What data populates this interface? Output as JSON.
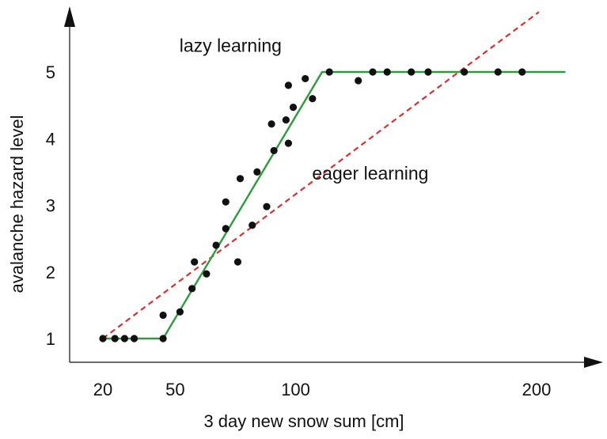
{
  "chart_data": {
    "type": "scatter",
    "xlabel": "3 day new snow sum [cm]",
    "ylabel": "avalanche  hazard  level",
    "xlim": [
      10,
      215
    ],
    "ylim": [
      0.6,
      6.0
    ],
    "xticks": [
      {
        "value": 20,
        "label": "20"
      },
      {
        "value": 50,
        "label": "50"
      },
      {
        "value": 100,
        "label": "100"
      },
      {
        "value": 200,
        "label": "200"
      }
    ],
    "yticks": [
      {
        "value": 1,
        "label": "1"
      },
      {
        "value": 2,
        "label": "2"
      },
      {
        "value": 3,
        "label": "3"
      },
      {
        "value": 4,
        "label": "4"
      },
      {
        "value": 5,
        "label": "5"
      }
    ],
    "grid": false,
    "points": [
      {
        "x": 20,
        "y": 1.0
      },
      {
        "x": 25,
        "y": 1.0
      },
      {
        "x": 29,
        "y": 1.0
      },
      {
        "x": 33,
        "y": 1.0
      },
      {
        "x": 45,
        "y": 1.0
      },
      {
        "x": 45,
        "y": 1.35
      },
      {
        "x": 52,
        "y": 1.4
      },
      {
        "x": 57,
        "y": 1.75
      },
      {
        "x": 58,
        "y": 2.15
      },
      {
        "x": 63,
        "y": 1.97
      },
      {
        "x": 67,
        "y": 2.4
      },
      {
        "x": 71,
        "y": 2.65
      },
      {
        "x": 71,
        "y": 3.05
      },
      {
        "x": 76,
        "y": 2.15
      },
      {
        "x": 77,
        "y": 3.4
      },
      {
        "x": 82,
        "y": 2.7
      },
      {
        "x": 84,
        "y": 3.5
      },
      {
        "x": 88,
        "y": 2.98
      },
      {
        "x": 90,
        "y": 4.22
      },
      {
        "x": 91,
        "y": 3.82
      },
      {
        "x": 96,
        "y": 4.28
      },
      {
        "x": 97,
        "y": 3.93
      },
      {
        "x": 97,
        "y": 4.8
      },
      {
        "x": 99,
        "y": 4.47
      },
      {
        "x": 104,
        "y": 4.9
      },
      {
        "x": 107,
        "y": 4.6
      },
      {
        "x": 114,
        "y": 5.0
      },
      {
        "x": 126,
        "y": 4.87
      },
      {
        "x": 132,
        "y": 5.0
      },
      {
        "x": 138,
        "y": 5.0
      },
      {
        "x": 148,
        "y": 5.0
      },
      {
        "x": 155,
        "y": 5.0
      },
      {
        "x": 170,
        "y": 5.0
      },
      {
        "x": 184,
        "y": 5.0
      },
      {
        "x": 194,
        "y": 5.0
      }
    ],
    "lazy_line": {
      "name": "lazy learning",
      "color": "#2e9c3e",
      "points": [
        [
          20,
          1.0
        ],
        [
          45,
          1.0
        ],
        [
          111,
          5.0
        ],
        [
          212,
          5.0
        ]
      ]
    },
    "eager_line": {
      "name": "eager learning",
      "color": "#d8302f",
      "points": [
        [
          20,
          1.0
        ],
        [
          201,
          5.9
        ]
      ]
    },
    "annotations": [
      {
        "text": "lazy learning",
        "x": 73,
        "y": 5.4
      },
      {
        "text": "eager learning",
        "x": 131,
        "y": 3.48
      }
    ],
    "point_color": "#111111",
    "axis_color": "#111111"
  }
}
